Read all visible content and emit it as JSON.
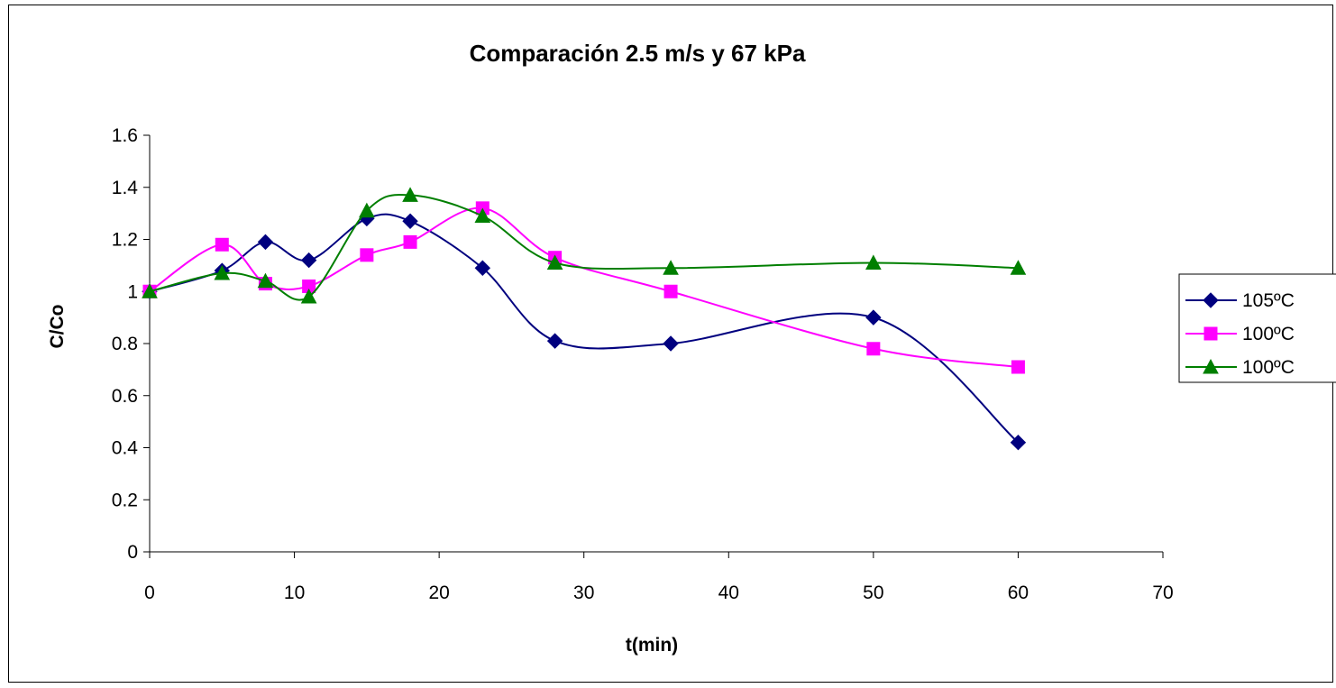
{
  "chart_data": {
    "type": "line",
    "title": "Comparación 2.5 m/s y 67 kPa",
    "xlabel": "t(min)",
    "ylabel": "C/Co",
    "xlim": [
      0,
      70
    ],
    "ylim": [
      0,
      1.6
    ],
    "x_ticks": [
      "0",
      "10",
      "20",
      "30",
      "40",
      "50",
      "60",
      "70"
    ],
    "y_ticks": [
      "0",
      "0.2",
      "0.4",
      "0.6",
      "0.8",
      "1",
      "1.2",
      "1.4",
      "1.6"
    ],
    "grid": false,
    "legend_position": "right",
    "series": [
      {
        "name": "105ºC",
        "color": "#00007f",
        "marker": "diamond",
        "x": [
          0,
          5,
          8,
          11,
          15,
          18,
          23,
          28,
          36,
          50,
          60
        ],
        "y": [
          1.0,
          1.08,
          1.19,
          1.12,
          1.28,
          1.27,
          1.09,
          0.81,
          0.8,
          0.9,
          0.42
        ]
      },
      {
        "name": "100ºC",
        "color": "#ff00ff",
        "marker": "square",
        "x": [
          0,
          5,
          8,
          11,
          15,
          18,
          23,
          28,
          36,
          50,
          60
        ],
        "y": [
          1.0,
          1.18,
          1.03,
          1.02,
          1.14,
          1.19,
          1.32,
          1.13,
          1.0,
          0.78,
          0.71
        ]
      },
      {
        "name": "100ºC",
        "color": "#007f00",
        "marker": "triangle",
        "x": [
          0,
          5,
          8,
          11,
          15,
          18,
          23,
          28,
          36,
          50,
          60
        ],
        "y": [
          1.0,
          1.07,
          1.04,
          0.98,
          1.31,
          1.37,
          1.29,
          1.11,
          1.09,
          1.11,
          1.09
        ]
      }
    ]
  }
}
